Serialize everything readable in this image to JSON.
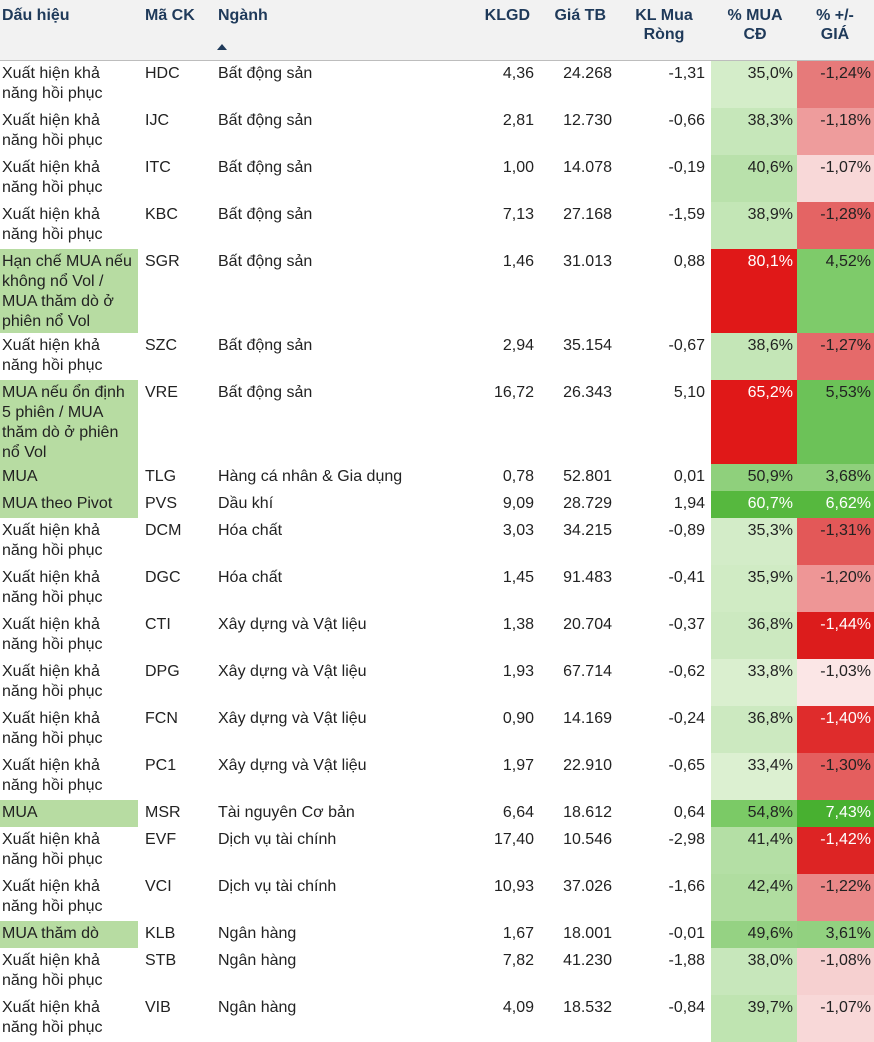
{
  "headers": {
    "signal": "Dấu hiệu",
    "code": "Mã CK",
    "industry": "Ngành",
    "klgd": "KLGD",
    "avg_price": "Giá TB",
    "net_buy": "KL Mua Ròng",
    "pct_buy": "% MUA CĐ",
    "pct_change": "% +/- GIÁ"
  },
  "colors": {
    "signal_highlight": "#b7dca2",
    "red_strong": "#e01818",
    "red_mid": "#e45a5a",
    "red_light": "#f5c8c8",
    "green_strong": "#56b83e",
    "green_mid": "#8ed07c",
    "green_light": "#cbe9c0"
  },
  "rows": [
    {
      "signal": "Xuất hiện khả năng hồi phục",
      "code": "HDC",
      "industry": "Bất động sản",
      "klgd": "4,36",
      "avg_price": "24.268",
      "net_buy": "-1,31",
      "pct_buy": "35,0%",
      "pct_change": "-1,24%",
      "hl": false,
      "mua_bg": "#d4edc9",
      "mua_fg": "#222222",
      "chg_bg": "#e67a7a",
      "chg_fg": "#222222",
      "h": 47
    },
    {
      "signal": "Xuất hiện khả năng hồi phục",
      "code": "IJC",
      "industry": "Bất động sản",
      "klgd": "2,81",
      "avg_price": "12.730",
      "net_buy": "-0,66",
      "pct_buy": "38,3%",
      "pct_change": "-1,18%",
      "hl": false,
      "mua_bg": "#c6e7ba",
      "mua_fg": "#222222",
      "chg_bg": "#ee9c9c",
      "chg_fg": "#222222",
      "h": 47
    },
    {
      "signal": "Xuất hiện khả năng hồi phục",
      "code": "ITC",
      "industry": "Bất động sản",
      "klgd": "1,00",
      "avg_price": "14.078",
      "net_buy": "-0,19",
      "pct_buy": "40,6%",
      "pct_change": "-1,07%",
      "hl": false,
      "mua_bg": "#b9e1ab",
      "mua_fg": "#222222",
      "chg_bg": "#f8d8d8",
      "chg_fg": "#222222",
      "h": 47
    },
    {
      "signal": "Xuất hiện khả năng hồi phục",
      "code": "KBC",
      "industry": "Bất động sản",
      "klgd": "7,13",
      "avg_price": "27.168",
      "net_buy": "-1,59",
      "pct_buy": "38,9%",
      "pct_change": "-1,28%",
      "hl": false,
      "mua_bg": "#c3e6b6",
      "mua_fg": "#222222",
      "chg_bg": "#e46464",
      "chg_fg": "#222222",
      "h": 47
    },
    {
      "signal": "Hạn chế MUA nếu không nổ Vol / MUA thăm dò ở phiên nổ Vol",
      "code": "SGR",
      "industry": "Bất động sản",
      "klgd": "1,46",
      "avg_price": "31.013",
      "net_buy": "0,88",
      "pct_buy": "80,1%",
      "pct_change": "4,52%",
      "hl": true,
      "mua_bg": "#e01818",
      "mua_fg": "#ffffff",
      "chg_bg": "#7ecb6a",
      "chg_fg": "#222222",
      "h": 84
    },
    {
      "signal": "Xuất hiện khả năng hồi phục",
      "code": "SZC",
      "industry": "Bất động sản",
      "klgd": "2,94",
      "avg_price": "35.154",
      "net_buy": "-0,67",
      "pct_buy": "38,6%",
      "pct_change": "-1,27%",
      "hl": false,
      "mua_bg": "#c4e6b7",
      "mua_fg": "#222222",
      "chg_bg": "#e56a6a",
      "chg_fg": "#222222",
      "h": 47
    },
    {
      "signal": "MUA nếu ổn định 5 phiên / MUA thăm dò ở phiên nổ Vol",
      "code": "VRE",
      "industry": "Bất động sản",
      "klgd": "16,72",
      "avg_price": "26.343",
      "net_buy": "5,10",
      "pct_buy": "65,2%",
      "pct_change": "5,53%",
      "hl": true,
      "mua_bg": "#e01818",
      "mua_fg": "#ffffff",
      "chg_bg": "#6cc258",
      "chg_fg": "#222222",
      "h": 84
    },
    {
      "signal": "MUA",
      "code": "TLG",
      "industry": "Hàng cá nhân & Gia dụng",
      "klgd": "0,78",
      "avg_price": "52.801",
      "net_buy": "0,01",
      "pct_buy": "50,9%",
      "pct_change": "3,68%",
      "hl": true,
      "mua_bg": "#8fd07c",
      "mua_fg": "#222222",
      "chg_bg": "#8fd07c",
      "chg_fg": "#222222",
      "h": 27
    },
    {
      "signal": "MUA theo Pivot",
      "code": "PVS",
      "industry": "Dầu khí",
      "klgd": "9,09",
      "avg_price": "28.729",
      "net_buy": "1,94",
      "pct_buy": "60,7%",
      "pct_change": "6,62%",
      "hl": true,
      "mua_bg": "#56b83e",
      "mua_fg": "#ffffff",
      "chg_bg": "#56b83e",
      "chg_fg": "#ffffff",
      "h": 27
    },
    {
      "signal": "Xuất hiện khả năng hồi phục",
      "code": "DCM",
      "industry": "Hóa chất",
      "klgd": "3,03",
      "avg_price": "34.215",
      "net_buy": "-0,89",
      "pct_buy": "35,3%",
      "pct_change": "-1,31%",
      "hl": false,
      "mua_bg": "#d3ecc8",
      "mua_fg": "#222222",
      "chg_bg": "#e35858",
      "chg_fg": "#222222",
      "h": 47
    },
    {
      "signal": "Xuất hiện khả năng hồi phục",
      "code": "DGC",
      "industry": "Hóa chất",
      "klgd": "1,45",
      "avg_price": "91.483",
      "net_buy": "-0,41",
      "pct_buy": "35,9%",
      "pct_change": "-1,20%",
      "hl": false,
      "mua_bg": "#d0ebc4",
      "mua_fg": "#222222",
      "chg_bg": "#ee9696",
      "chg_fg": "#222222",
      "h": 47
    },
    {
      "signal": "Xuất hiện khả năng hồi phục",
      "code": "CTI",
      "industry": "Xây dựng và Vật liệu",
      "klgd": "1,38",
      "avg_price": "20.704",
      "net_buy": "-0,37",
      "pct_buy": "36,8%",
      "pct_change": "-1,44%",
      "hl": false,
      "mua_bg": "#cce9c0",
      "mua_fg": "#222222",
      "chg_bg": "#dc1c1c",
      "chg_fg": "#ffffff",
      "h": 47
    },
    {
      "signal": "Xuất hiện khả năng hồi phục",
      "code": "DPG",
      "industry": "Xây dựng và Vật liệu",
      "klgd": "1,93",
      "avg_price": "67.714",
      "net_buy": "-0,62",
      "pct_buy": "33,8%",
      "pct_change": "-1,03%",
      "hl": false,
      "mua_bg": "#daefcf",
      "mua_fg": "#222222",
      "chg_bg": "#fbe6e6",
      "chg_fg": "#222222",
      "h": 47
    },
    {
      "signal": "Xuất hiện khả năng hồi phục",
      "code": "FCN",
      "industry": "Xây dựng và Vật liệu",
      "klgd": "0,90",
      "avg_price": "14.169",
      "net_buy": "-0,24",
      "pct_buy": "36,8%",
      "pct_change": "-1,40%",
      "hl": false,
      "mua_bg": "#cce9c0",
      "mua_fg": "#222222",
      "chg_bg": "#df2c2c",
      "chg_fg": "#ffffff",
      "h": 47
    },
    {
      "signal": "Xuất hiện khả năng hồi phục",
      "code": "PC1",
      "industry": "Xây dựng và Vật liệu",
      "klgd": "1,97",
      "avg_price": "22.910",
      "net_buy": "-0,65",
      "pct_buy": "33,4%",
      "pct_change": "-1,30%",
      "hl": false,
      "mua_bg": "#dcf0d1",
      "mua_fg": "#222222",
      "chg_bg": "#e45e5e",
      "chg_fg": "#222222",
      "h": 47
    },
    {
      "signal": "MUA",
      "code": "MSR",
      "industry": "Tài nguyên Cơ bản",
      "klgd": "6,64",
      "avg_price": "18.612",
      "net_buy": "0,64",
      "pct_buy": "54,8%",
      "pct_change": "7,43%",
      "hl": true,
      "mua_bg": "#7bca66",
      "mua_fg": "#222222",
      "chg_bg": "#48b030",
      "chg_fg": "#ffffff",
      "h": 27
    },
    {
      "signal": "Xuất hiện khả năng hồi phục",
      "code": "EVF",
      "industry": "Dịch vụ tài chính",
      "klgd": "17,40",
      "avg_price": "10.546",
      "net_buy": "-2,98",
      "pct_buy": "41,4%",
      "pct_change": "-1,42%",
      "hl": false,
      "mua_bg": "#b4dfa5",
      "mua_fg": "#222222",
      "chg_bg": "#dd2424",
      "chg_fg": "#ffffff",
      "h": 47
    },
    {
      "signal": "Xuất hiện khả năng hồi phục",
      "code": "VCI",
      "industry": "Dịch vụ tài chính",
      "klgd": "10,93",
      "avg_price": "37.026",
      "net_buy": "-1,66",
      "pct_buy": "42,4%",
      "pct_change": "-1,22%",
      "hl": false,
      "mua_bg": "#b0dda0",
      "mua_fg": "#222222",
      "chg_bg": "#ea8888",
      "chg_fg": "#222222",
      "h": 47
    },
    {
      "signal": "MUA thăm dò",
      "code": "KLB",
      "industry": "Ngân hàng",
      "klgd": "1,67",
      "avg_price": "18.001",
      "net_buy": "-0,01",
      "pct_buy": "49,6%",
      "pct_change": "3,61%",
      "hl": true,
      "mua_bg": "#95d283",
      "mua_fg": "#222222",
      "chg_bg": "#92d180",
      "chg_fg": "#222222",
      "h": 27
    },
    {
      "signal": "Xuất hiện khả năng hồi phục",
      "code": "STB",
      "industry": "Ngân hàng",
      "klgd": "7,82",
      "avg_price": "41.230",
      "net_buy": "-1,88",
      "pct_buy": "38,0%",
      "pct_change": "-1,08%",
      "hl": false,
      "mua_bg": "#c7e7bb",
      "mua_fg": "#222222",
      "chg_bg": "#f6d0d0",
      "chg_fg": "#222222",
      "h": 47
    },
    {
      "signal": "Xuất hiện khả năng hồi phục",
      "code": "VIB",
      "industry": "Ngân hàng",
      "klgd": "4,09",
      "avg_price": "18.532",
      "net_buy": "-0,84",
      "pct_buy": "39,7%",
      "pct_change": "-1,07%",
      "hl": false,
      "mua_bg": "#bfe4b1",
      "mua_fg": "#222222",
      "chg_bg": "#f8d8d8",
      "chg_fg": "#222222",
      "h": 47
    }
  ]
}
